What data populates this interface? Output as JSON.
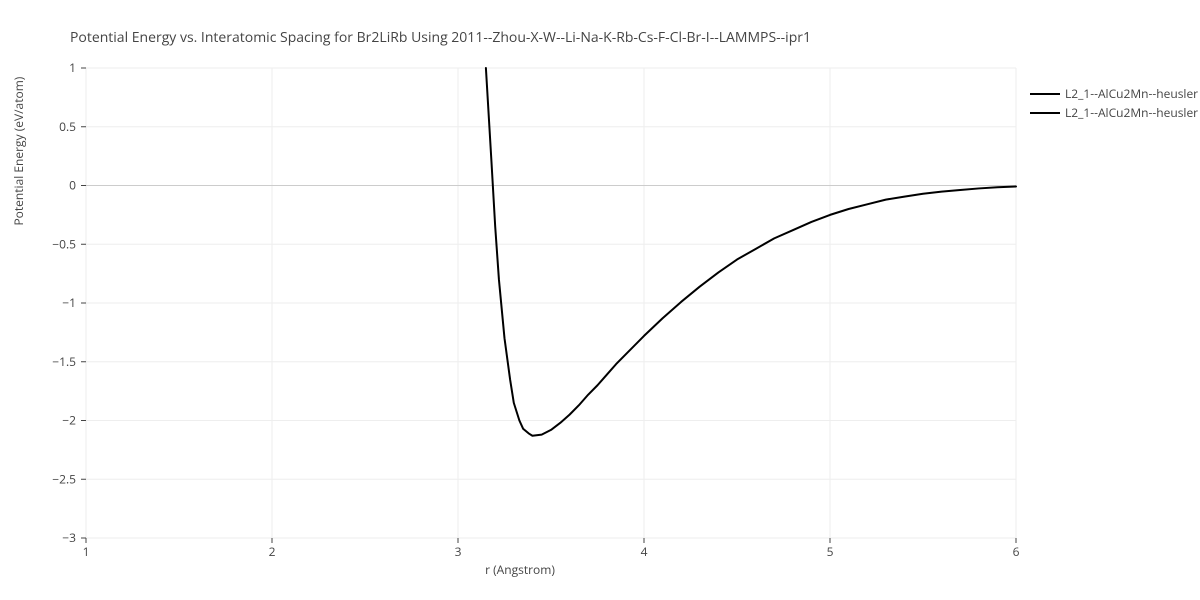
{
  "chart": {
    "type": "line",
    "title": "Potential Energy vs. Interatomic Spacing for Br2LiRb Using 2011--Zhou-X-W--Li-Na-K-Rb-Cs-F-Cl-Br-I--LAMMPS--ipr1",
    "title_fontsize": 14,
    "title_color": "#444444",
    "x_label": "r (Angstrom)",
    "y_label": "Potential Energy (eV/atom)",
    "axis_label_fontsize": 12,
    "axis_label_color": "#444444",
    "xlim": [
      1,
      6
    ],
    "ylim": [
      -3,
      1
    ],
    "xticks": [
      1,
      2,
      3,
      4,
      5,
      6
    ],
    "yticks": [
      -3,
      -2.5,
      -2,
      -1.5,
      -1,
      -0.5,
      0,
      0.5,
      1
    ],
    "ytick_labels": [
      "−3",
      "−2.5",
      "−2",
      "−1.5",
      "−1",
      "−0.5",
      "0",
      "0.5",
      "1"
    ],
    "xtick_labels": [
      "1",
      "2",
      "3",
      "4",
      "5",
      "6"
    ],
    "background_color": "#ffffff",
    "grid_color": "#eeeeee",
    "zero_line_color": "#cccccc",
    "axis_tick_color": "#444444",
    "tick_fontsize": 12,
    "line_color": "#000000",
    "line_width": 2,
    "legend": {
      "items": [
        "L2_1--AlCu2Mn--heusler",
        "L2_1--AlCu2Mn--heusler"
      ],
      "line_color": "#000000"
    },
    "series": [
      {
        "name": "L2_1--AlCu2Mn--heusler",
        "color": "#000000",
        "x": [
          3.15,
          3.18,
          3.2,
          3.22,
          3.25,
          3.28,
          3.3,
          3.33,
          3.35,
          3.38,
          3.4,
          3.45,
          3.5,
          3.55,
          3.6,
          3.65,
          3.7,
          3.75,
          3.8,
          3.85,
          3.9,
          4.0,
          4.1,
          4.2,
          4.3,
          4.4,
          4.5,
          4.6,
          4.7,
          4.8,
          4.9,
          5.0,
          5.1,
          5.2,
          5.3,
          5.4,
          5.5,
          5.6,
          5.7,
          5.8,
          5.9,
          6.0
        ],
        "y": [
          1.0,
          0.2,
          -0.35,
          -0.8,
          -1.3,
          -1.65,
          -1.85,
          -2.0,
          -2.07,
          -2.11,
          -2.13,
          -2.12,
          -2.08,
          -2.02,
          -1.95,
          -1.87,
          -1.78,
          -1.7,
          -1.61,
          -1.52,
          -1.44,
          -1.28,
          -1.13,
          -0.99,
          -0.86,
          -0.74,
          -0.63,
          -0.54,
          -0.45,
          -0.38,
          -0.31,
          -0.25,
          -0.2,
          -0.16,
          -0.12,
          -0.095,
          -0.07,
          -0.052,
          -0.038,
          -0.025,
          -0.015,
          -0.008
        ]
      }
    ]
  }
}
